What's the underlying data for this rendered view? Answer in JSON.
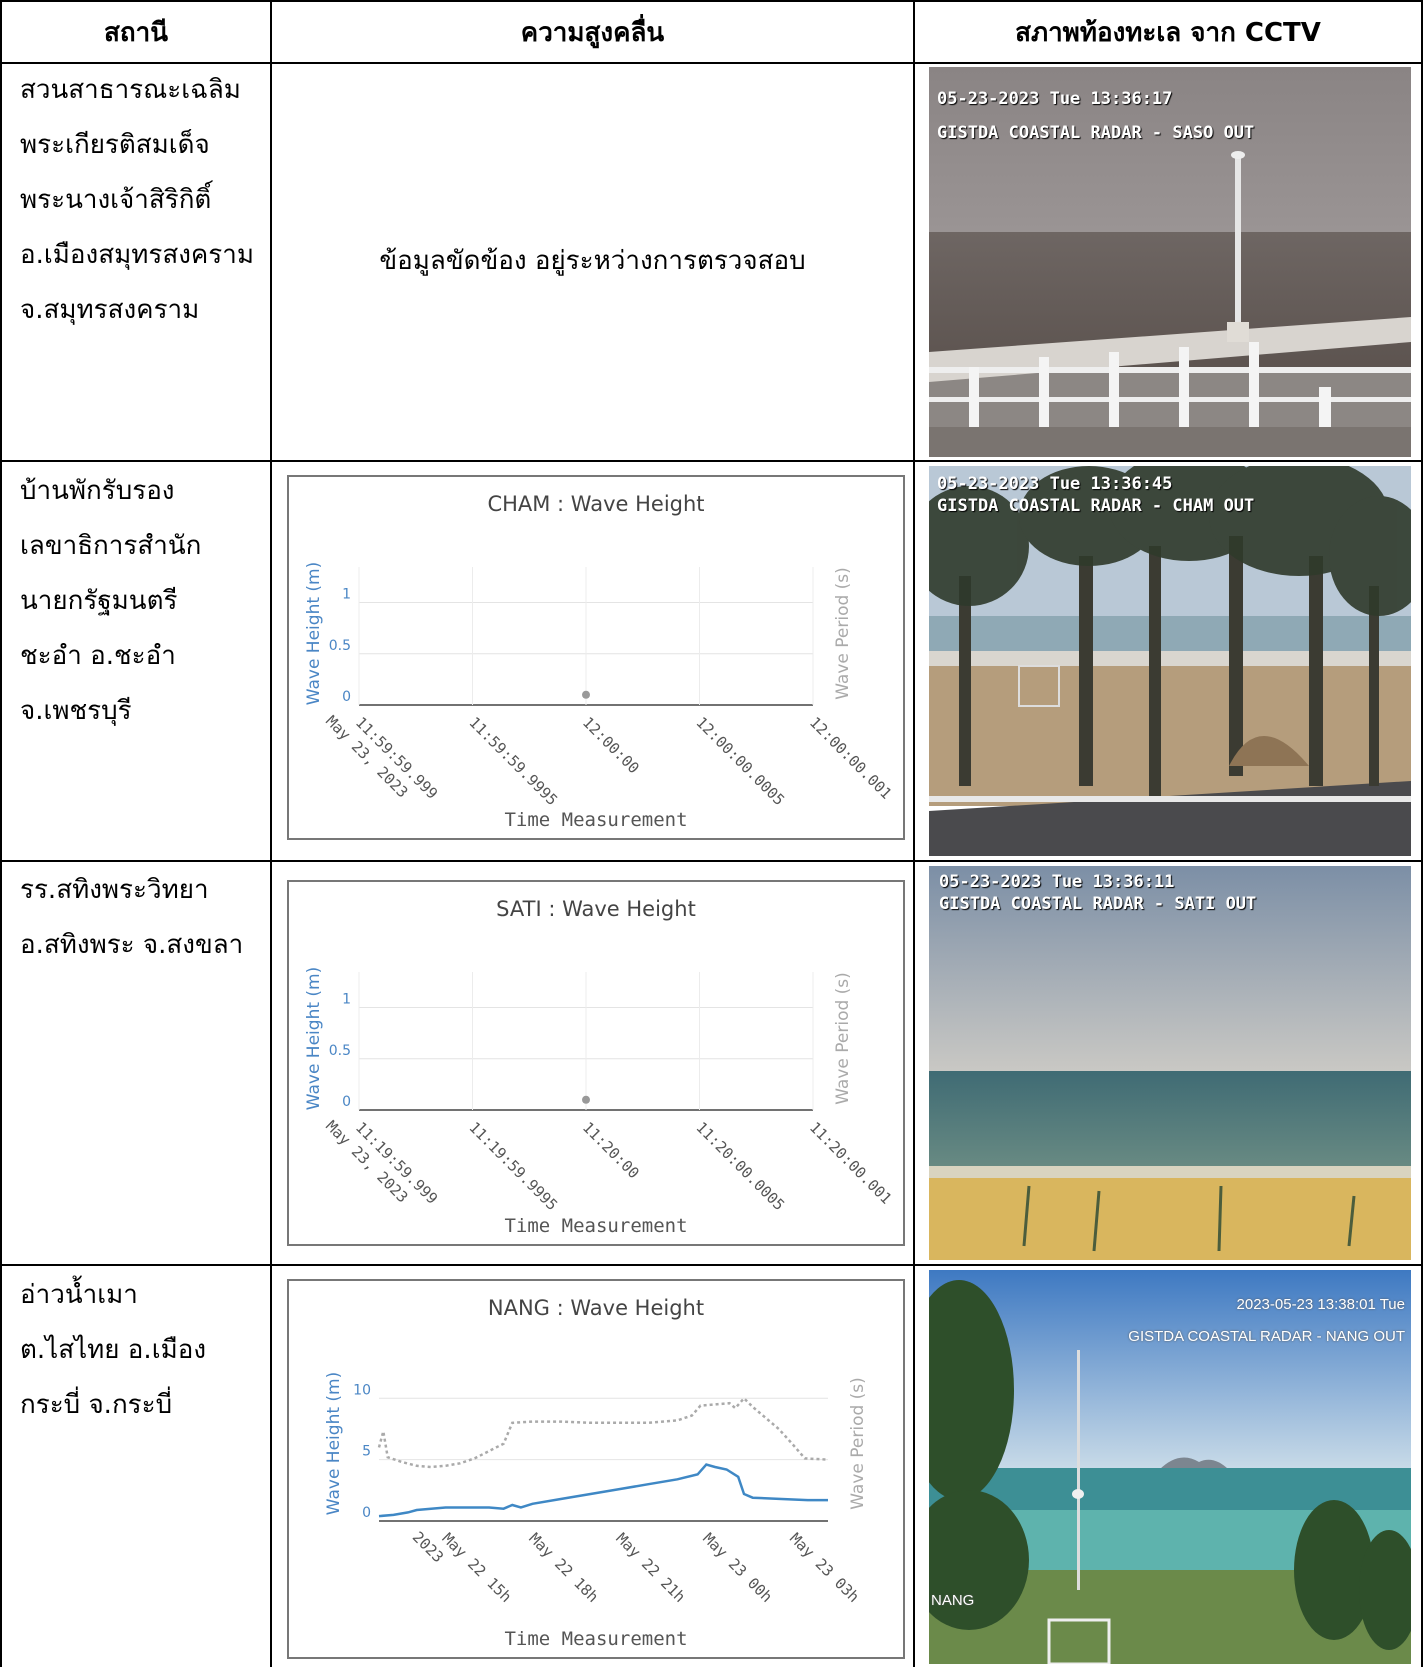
{
  "headers": {
    "station": "สถานี",
    "wave_height": "ความสูงคลื่น",
    "cctv": "สภาพท้องทะเล จาก CCTV"
  },
  "rows": [
    {
      "station_lines": [
        "สวนสาธารณะเฉลิม",
        "พระเกียรติสมเด็จ",
        "พระนางเจ้าสิริกิติ์",
        "อ.เมืองสมุทรสงคราม",
        "จ.สมุทรสงคราม"
      ],
      "notice": "ข้อมูลขัดข้อง อยู่ระหว่างการตรวจสอบ",
      "cam": {
        "osd_line1": "05-23-2023 Tue 13:36:17",
        "osd_line2": "GISTDA COASTAL RADAR - SASO OUT"
      }
    },
    {
      "station_lines": [
        "บ้านพักรับรอง",
        "เลขาธิการสำนัก",
        "นายกรัฐมนตรี",
        "ชะอำ อ.ชะอำ",
        "จ.เพชรบุรี"
      ],
      "cam": {
        "osd_line1": "05-23-2023 Tue 13:36:45",
        "osd_line2": "GISTDA COASTAL RADAR - CHAM OUT"
      }
    },
    {
      "station_lines": [
        "รร.สทิงพระวิทยา",
        "อ.สทิงพระ จ.สงขลา"
      ],
      "cam": {
        "osd_line1": "05-23-2023 Tue 13:36:11",
        "osd_line2": "GISTDA COASTAL RADAR - SATI OUT"
      }
    },
    {
      "station_lines": [
        "อ่าวน้ำเมา",
        "ต.ไสไทย  อ.เมือง",
        "กระบี่ จ.กระบี่"
      ],
      "cam": {
        "osd_line1": "2023-05-23 13:38:01 Tue",
        "osd_line2": "GISTDA COASTAL RADAR - NANG OUT",
        "osd_corner": "NANG"
      }
    }
  ],
  "chart_data": [
    {
      "type": "scatter",
      "title": "CHAM : Wave Height",
      "xlabel": "Time Measurement",
      "ylabel": "Wave Height (m)",
      "y2label": "Wave Period (s)",
      "ylim": [
        0,
        1.2
      ],
      "yticks": [
        "0",
        "0.5",
        "1"
      ],
      "xtick_labels": [
        [
          "11:59:59.999",
          "May 23, 2023"
        ],
        [
          "11:59:59.9995"
        ],
        [
          "12:00:00"
        ],
        [
          "12:00:00.0005"
        ],
        [
          "12:00:00.001"
        ]
      ],
      "points": [
        {
          "x": "12:00:00",
          "y": 0.1
        }
      ],
      "point_color": "#999999",
      "ylabel_color": "#4a86c5",
      "y2label_color": "#aaaaaa"
    },
    {
      "type": "scatter",
      "title": "SATI : Wave Height",
      "xlabel": "Time Measurement",
      "ylabel": "Wave Height (m)",
      "y2label": "Wave Period (s)",
      "ylim": [
        0,
        1.2
      ],
      "yticks": [
        "0",
        "0.5",
        "1"
      ],
      "xtick_labels": [
        [
          "11:19:59.999",
          "May 23, 2023"
        ],
        [
          "11:19:59.9995"
        ],
        [
          "11:20:00"
        ],
        [
          "11:20:00.0005"
        ],
        [
          "11:20:00.001"
        ]
      ],
      "points": [
        {
          "x": "11:20:00",
          "y": 0.1
        }
      ],
      "point_color": "#999999",
      "ylabel_color": "#4a86c5",
      "y2label_color": "#aaaaaa"
    },
    {
      "type": "line",
      "title": "NANG : Wave Height",
      "xlabel": "Time Measurement",
      "ylabel": "Wave Height (m)",
      "y2label": "Wave Period (s)",
      "ylim": [
        0,
        11
      ],
      "yticks": [
        "0",
        "5",
        "10"
      ],
      "xlim_hours": [
        12.7,
        28.2
      ],
      "xtick_hours": [
        15,
        18,
        21,
        24,
        27
      ],
      "xtick_labels": [
        [
          "May 22 15h",
          "2023"
        ],
        [
          "May 22 18h"
        ],
        [
          "May 22 21h"
        ],
        [
          "May 23 00h"
        ],
        [
          "May 23 03h"
        ]
      ],
      "series": [
        {
          "name": "",
          "color": "#3f88c5",
          "style": "solid",
          "points": [
            [
              12.7,
              0.4
            ],
            [
              13.2,
              0.5
            ],
            [
              13.7,
              0.7
            ],
            [
              14.0,
              0.9
            ],
            [
              14.5,
              1.0
            ],
            [
              15.0,
              1.1
            ],
            [
              15.5,
              1.1
            ],
            [
              16.0,
              1.1
            ],
            [
              16.5,
              1.1
            ],
            [
              17.0,
              1.0
            ],
            [
              17.3,
              1.3
            ],
            [
              17.6,
              1.1
            ],
            [
              18.0,
              1.4
            ],
            [
              19.0,
              1.8
            ],
            [
              20.0,
              2.2
            ],
            [
              21.0,
              2.6
            ],
            [
              22.0,
              3.0
            ],
            [
              23.0,
              3.4
            ],
            [
              23.7,
              3.8
            ],
            [
              24.0,
              4.6
            ],
            [
              24.3,
              4.4
            ],
            [
              24.7,
              4.2
            ],
            [
              25.1,
              3.6
            ],
            [
              25.3,
              2.2
            ],
            [
              25.6,
              1.9
            ],
            [
              26.5,
              1.8
            ],
            [
              27.5,
              1.7
            ],
            [
              28.2,
              1.7
            ]
          ]
        },
        {
          "name": "",
          "color": "#aaaaaa",
          "style": "dotted",
          "points": [
            [
              12.7,
              6.0
            ],
            [
              12.85,
              7.3
            ],
            [
              13.0,
              5.2
            ],
            [
              13.5,
              4.8
            ],
            [
              14.0,
              4.5
            ],
            [
              14.5,
              4.4
            ],
            [
              15.0,
              4.5
            ],
            [
              15.5,
              4.7
            ],
            [
              16.0,
              5.1
            ],
            [
              16.5,
              5.7
            ],
            [
              17.0,
              6.3
            ],
            [
              17.3,
              8.0
            ],
            [
              18.0,
              8.1
            ],
            [
              19.0,
              8.1
            ],
            [
              20.0,
              8.0
            ],
            [
              21.0,
              8.0
            ],
            [
              22.0,
              8.0
            ],
            [
              23.0,
              8.2
            ],
            [
              23.5,
              8.6
            ],
            [
              23.8,
              9.4
            ],
            [
              24.3,
              9.5
            ],
            [
              24.8,
              9.6
            ],
            [
              25.0,
              9.2
            ],
            [
              25.3,
              10.0
            ],
            [
              25.6,
              9.3
            ],
            [
              26.0,
              8.5
            ],
            [
              26.5,
              7.5
            ],
            [
              27.0,
              6.2
            ],
            [
              27.4,
              5.1
            ],
            [
              28.2,
              5.0
            ]
          ]
        }
      ],
      "ylabel_color": "#4a86c5",
      "y2label_color": "#aaaaaa"
    }
  ]
}
